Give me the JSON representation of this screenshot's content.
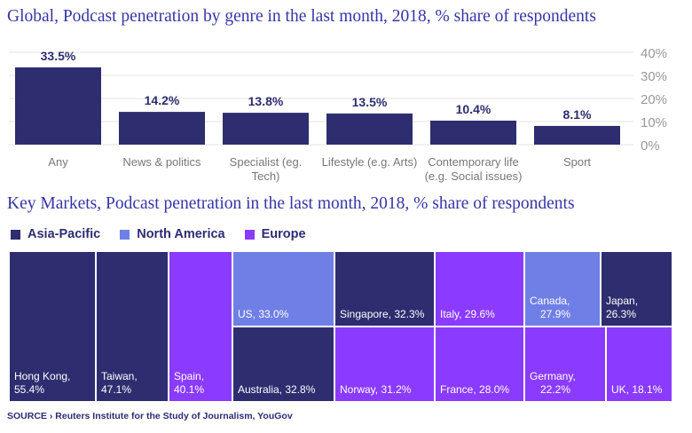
{
  "colors": {
    "title": "#3535a8",
    "bar": "#2d2d6f",
    "asia_pacific": "#2d2d6f",
    "north_america": "#6f7fe6",
    "europe": "#8a3bff",
    "axis_text": "#999999"
  },
  "chart_data": [
    {
      "type": "bar",
      "title": "Global, Podcast penetration by genre in the last month, 2018, % share of respondents",
      "categories": [
        "Any",
        "News & politics",
        "Specialist (eg. Tech)",
        "Lifestyle (e.g. Arts)",
        "Contemporary life (e.g. Social issues)",
        "Sport"
      ],
      "category_lines": [
        [
          "Any"
        ],
        [
          "News & politics"
        ],
        [
          "Specialist (eg.",
          "Tech)"
        ],
        [
          "Lifestyle (e.g. Arts)"
        ],
        [
          "Contemporary life",
          "(e.g. Social issues)"
        ],
        [
          "Sport"
        ]
      ],
      "values": [
        33.5,
        14.2,
        13.8,
        13.5,
        10.4,
        8.1
      ],
      "data_labels": [
        "33.5%",
        "14.2%",
        "13.8%",
        "13.5%",
        "10.4%",
        "8.1%"
      ],
      "ylim": [
        0,
        40
      ],
      "yticks": [
        0,
        10,
        20,
        30,
        40
      ],
      "ytick_labels": [
        "0%",
        "10%",
        "20%",
        "30%",
        "40%"
      ],
      "y_axis_side": "right",
      "grid": true
    },
    {
      "type": "treemap",
      "title": "Key Markets, Podcast penetration in the last month, 2018, % share of respondents",
      "legend": [
        "Asia-Pacific",
        "North America",
        "Europe"
      ],
      "cells": [
        {
          "name": "Hong Kong,",
          "value": 55.4,
          "label": "55.4%",
          "region": "Asia-Pacific"
        },
        {
          "name": "Taiwan,",
          "value": 47.1,
          "label": "47.1%",
          "region": "Asia-Pacific"
        },
        {
          "name": "Spain,",
          "value": 40.1,
          "label": "40.1%",
          "region": "Europe"
        },
        {
          "name": "US,",
          "value": 33.0,
          "label": "33.0%",
          "region": "North America"
        },
        {
          "name": "Australia,",
          "value": 32.8,
          "label": "32.8%",
          "region": "Asia-Pacific"
        },
        {
          "name": "Singapore,",
          "value": 32.3,
          "label": "32.3%",
          "region": "Asia-Pacific"
        },
        {
          "name": "Norway,",
          "value": 31.2,
          "label": "31.2%",
          "region": "Europe"
        },
        {
          "name": "Italy,",
          "value": 29.6,
          "label": "29.6%",
          "region": "Europe"
        },
        {
          "name": "France,",
          "value": 28.0,
          "label": "28.0%",
          "region": "Europe"
        },
        {
          "name": "Canada,",
          "value": 27.9,
          "label": "27.9%",
          "region": "North America"
        },
        {
          "name": "Japan,",
          "value": 26.3,
          "label": "26.3%",
          "region": "Asia-Pacific"
        },
        {
          "name": "Germany,",
          "value": 22.2,
          "label": "22.2%",
          "region": "Europe"
        },
        {
          "name": "UK,",
          "value": 18.1,
          "label": "18.1%",
          "region": "Europe"
        }
      ]
    }
  ],
  "source": {
    "key": "SOURCE ›",
    "text": "Reuters Institute for the Study of Journalism, YouGov"
  }
}
